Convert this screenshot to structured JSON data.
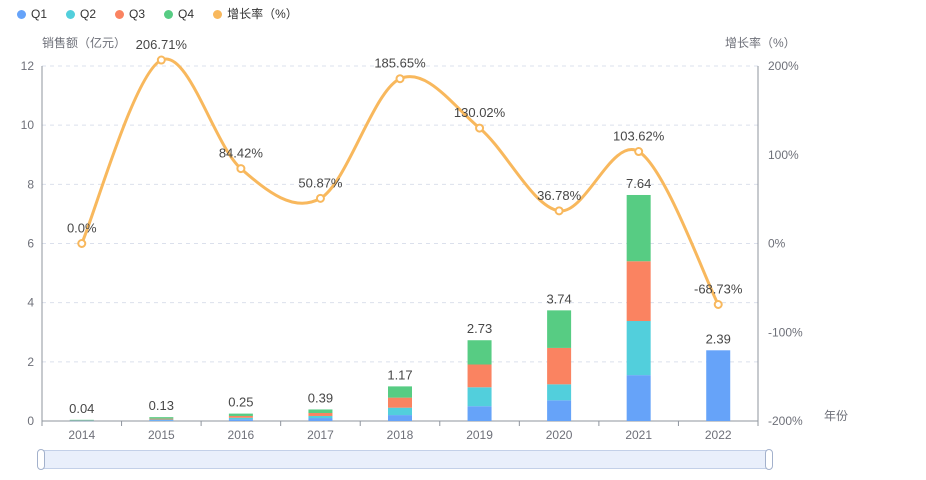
{
  "legend": {
    "items": [
      {
        "label": "Q1",
        "color": "#66A3F9"
      },
      {
        "label": "Q2",
        "color": "#52CFDC"
      },
      {
        "label": "Q3",
        "color": "#FA8361"
      },
      {
        "label": "Q4",
        "color": "#57CC83"
      },
      {
        "label": "增长率（%）",
        "color": "#F8B85D"
      }
    ]
  },
  "axes": {
    "left": {
      "name": "销售额（亿元）",
      "ticks": [
        {
          "label": "0",
          "value": 0
        },
        {
          "label": "2",
          "value": 2
        },
        {
          "label": "4",
          "value": 4
        },
        {
          "label": "6",
          "value": 6
        },
        {
          "label": "8",
          "value": 8
        },
        {
          "label": "10",
          "value": 10
        },
        {
          "label": "12",
          "value": 12
        }
      ]
    },
    "right": {
      "name": "增长率（%）",
      "ticks": [
        {
          "label": "-200%",
          "value": -200
        },
        {
          "label": "-100%",
          "value": -100
        },
        {
          "label": "0%",
          "value": 0
        },
        {
          "label": "100%",
          "value": 100
        },
        {
          "label": "200%",
          "value": 200
        }
      ]
    },
    "x": {
      "name": "年份",
      "categories": [
        "2014",
        "2015",
        "2016",
        "2017",
        "2018",
        "2019",
        "2020",
        "2021",
        "2022"
      ]
    }
  },
  "chart_data": {
    "type": "bar",
    "subtype": "stacked-bar-with-line",
    "title": "",
    "xlabel": "年份",
    "ylabel_left": "销售额（亿元）",
    "ylabel_right": "增长率（%）",
    "ylim_left": [
      0,
      12
    ],
    "ylim_right": [
      -200,
      200
    ],
    "grid": "dashed-horizontal",
    "legend_position": "top-left",
    "categories": [
      "2014",
      "2015",
      "2016",
      "2017",
      "2018",
      "2019",
      "2020",
      "2021",
      "2022"
    ],
    "series": [
      {
        "name": "Q1",
        "type": "bar",
        "stack": "sales",
        "color": "#66A3F9",
        "values": [
          0.01,
          0.03,
          0.06,
          0.1,
          0.2,
          0.5,
          0.7,
          1.55,
          2.39
        ]
      },
      {
        "name": "Q2",
        "type": "bar",
        "stack": "sales",
        "color": "#52CFDC",
        "values": [
          0.01,
          0.02,
          0.05,
          0.07,
          0.25,
          0.64,
          0.54,
          1.83,
          0
        ]
      },
      {
        "name": "Q3",
        "type": "bar",
        "stack": "sales",
        "color": "#FA8361",
        "values": [
          0.01,
          0.03,
          0.06,
          0.1,
          0.34,
          0.77,
          1.23,
          2.02,
          0
        ]
      },
      {
        "name": "Q4",
        "type": "bar",
        "stack": "sales",
        "color": "#57CC83",
        "values": [
          0.01,
          0.05,
          0.08,
          0.12,
          0.38,
          0.82,
          1.27,
          2.24,
          0
        ]
      },
      {
        "name": "增长率（%）",
        "type": "line",
        "yaxis": "right",
        "color": "#F8B85D",
        "values": [
          0.0,
          206.71,
          84.42,
          50.87,
          185.65,
          130.02,
          36.78,
          103.62,
          -68.73
        ],
        "labels": [
          "0.0%",
          "206.71%",
          "84.42%",
          "50.87%",
          "185.65%",
          "130.02%",
          "36.78%",
          "103.62%",
          "-68.73%"
        ]
      }
    ],
    "stack_totals": [
      0.04,
      0.13,
      0.25,
      0.39,
      1.17,
      2.73,
      3.74,
      7.64,
      2.39
    ],
    "stack_total_labels": [
      "0.04",
      "0.13",
      "0.25",
      "0.39",
      "1.17",
      "2.73",
      "3.74",
      "7.64",
      "2.39"
    ]
  },
  "colors": {
    "grid": "#DBE0EC",
    "axis": "#8F959E",
    "tick_text": "#6E7079",
    "value_label": "#474747",
    "background": "#FFFFFF",
    "slider_fill": "#E9EFFB",
    "slider_border": "#C3D0E8",
    "slider_handle_border": "#A3B1CC"
  }
}
